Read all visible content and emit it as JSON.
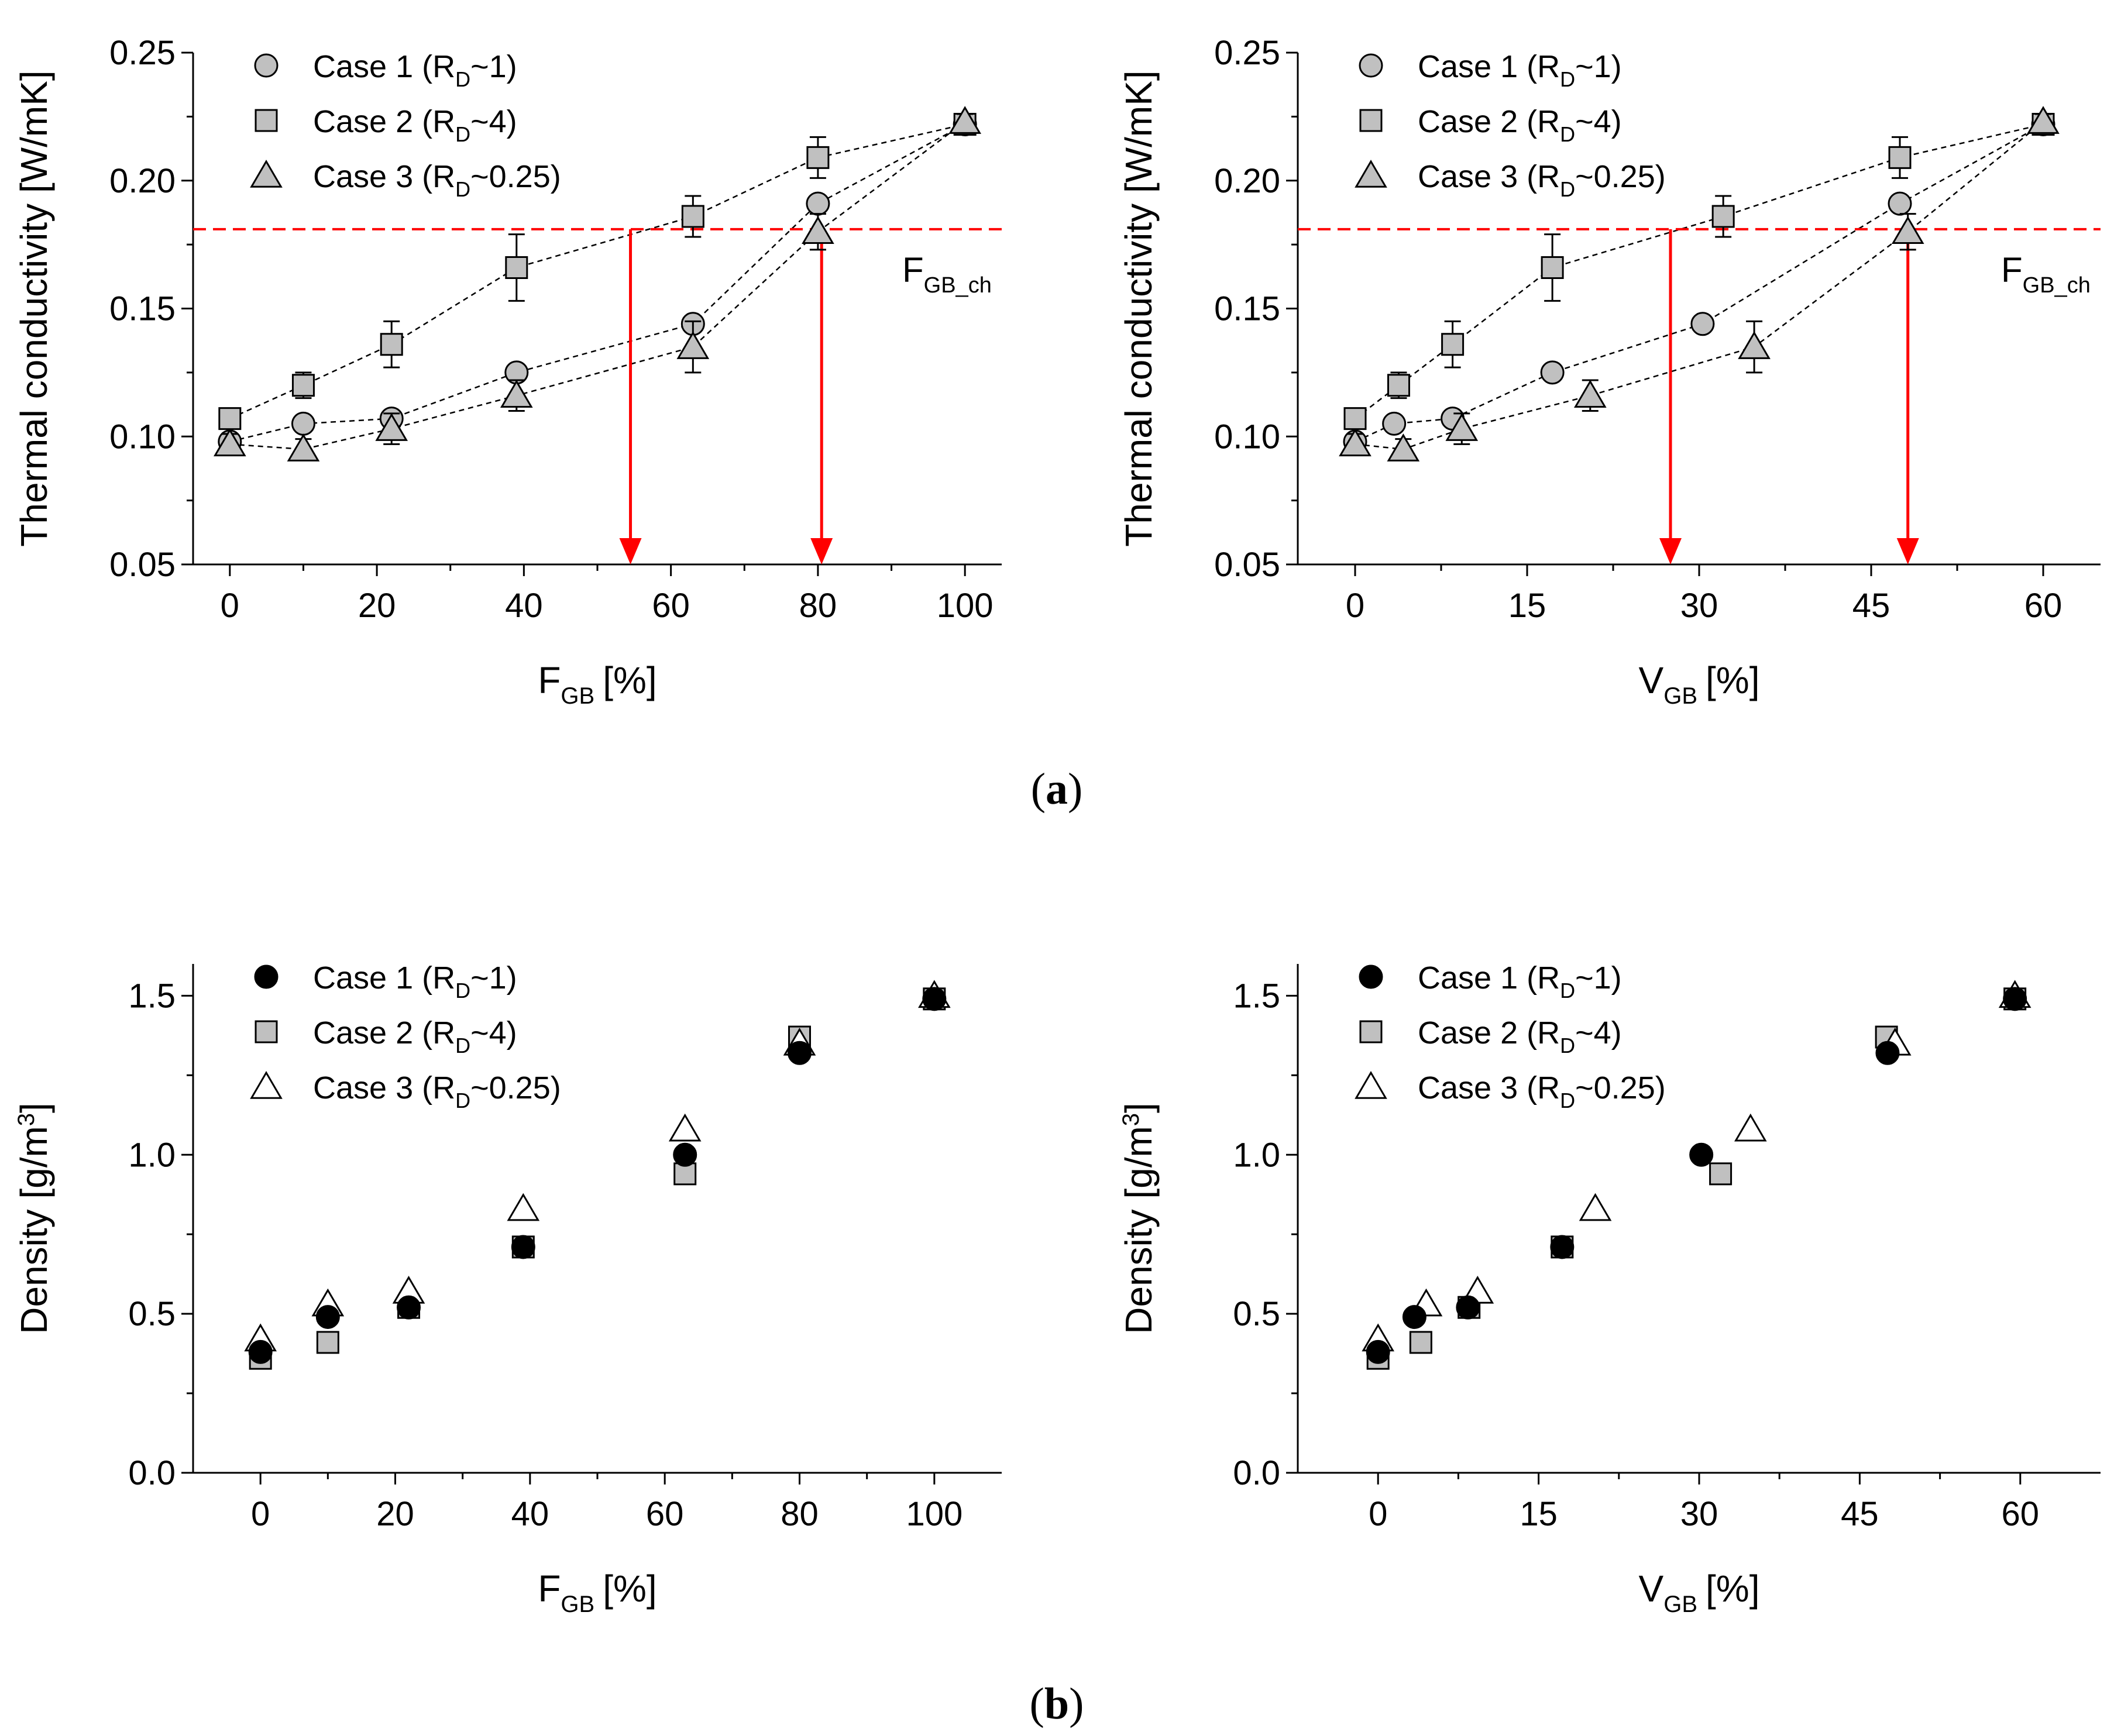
{
  "panels": {
    "a": "a",
    "b": "b"
  },
  "colors": {
    "marker_fill_gray": "#c0c0c0",
    "marker_fill_black": "#000000",
    "marker_fill_white": "#ffffff",
    "threshold_red": "#ff0000",
    "dashed_curve": "#000000"
  },
  "chart_data": [
    {
      "id": "a-left",
      "type": "scatter",
      "xlabel_main": "F",
      "xlabel_sub": "GB",
      "xlabel_unit": "[%]",
      "ylabel": "Thermal conductivity [W/mK]",
      "xlim": [
        -5,
        105
      ],
      "ylim": [
        0.05,
        0.25
      ],
      "xticks": [
        0,
        20,
        40,
        60,
        80,
        100
      ],
      "xtick_labels": [
        "0",
        "20",
        "40",
        "60",
        "80",
        "100"
      ],
      "yticks": [
        0.05,
        0.1,
        0.15,
        0.2,
        0.25
      ],
      "ytick_labels": [
        "0.05",
        "0.10",
        "0.15",
        "0.20",
        "0.25"
      ],
      "threshold": {
        "y": 0.181,
        "label_main": "F",
        "label_sub": "GB_ch",
        "arrows_x": [
          54.5,
          80.5
        ]
      },
      "legend": [
        {
          "marker": "circle",
          "pre": "Case 1 (R",
          "sub": "D",
          "post": "~1)"
        },
        {
          "marker": "square",
          "pre": "Case 2 (R",
          "sub": "D",
          "post": "~4)"
        },
        {
          "marker": "triangle",
          "pre": "Case 3 (R",
          "sub": "D",
          "post": "~0.25)"
        }
      ],
      "series": [
        {
          "name": "Case 1",
          "marker": "circle",
          "fill": "gray",
          "x": [
            0,
            10,
            22,
            39,
            63,
            80,
            100
          ],
          "y": [
            0.098,
            0.105,
            0.107,
            0.125,
            0.144,
            0.191,
            0.222
          ],
          "err": [
            0,
            0,
            0,
            0,
            0,
            0,
            0
          ]
        },
        {
          "name": "Case 2",
          "marker": "square",
          "fill": "gray",
          "x": [
            0,
            10,
            22,
            39,
            63,
            80,
            100
          ],
          "y": [
            0.107,
            0.12,
            0.136,
            0.166,
            0.186,
            0.209,
            0.222
          ],
          "err": [
            0,
            0.005,
            0.009,
            0.013,
            0.008,
            0.008,
            0.003
          ]
        },
        {
          "name": "Case 3",
          "marker": "triangle",
          "fill": "gray",
          "x": [
            0,
            10,
            22,
            39,
            63,
            80,
            100
          ],
          "y": [
            0.097,
            0.095,
            0.103,
            0.116,
            0.135,
            0.18,
            0.223
          ],
          "err": [
            0.004,
            0.004,
            0.006,
            0.006,
            0.01,
            0.007,
            0.003
          ]
        }
      ],
      "dashed_curves": true
    },
    {
      "id": "a-right",
      "type": "scatter",
      "xlabel_main": "V",
      "xlabel_sub": "GB",
      "xlabel_unit": "[%]",
      "ylabel": "Thermal conductivity [W/mK]",
      "xlim": [
        -5,
        65
      ],
      "ylim": [
        0.05,
        0.25
      ],
      "xticks": [
        0,
        15,
        30,
        45,
        60
      ],
      "xtick_labels": [
        "0",
        "15",
        "30",
        "45",
        "60"
      ],
      "yticks": [
        0.05,
        0.1,
        0.15,
        0.2,
        0.25
      ],
      "ytick_labels": [
        "0.05",
        "0.10",
        "0.15",
        "0.20",
        "0.25"
      ],
      "threshold": {
        "y": 0.181,
        "label_main": "F",
        "label_sub": "GB_ch",
        "arrows_x": [
          27.5,
          48.2
        ]
      },
      "legend": [
        {
          "marker": "circle",
          "pre": "Case 1 (R",
          "sub": "D",
          "post": "~1)"
        },
        {
          "marker": "square",
          "pre": "Case 2 (R",
          "sub": "D",
          "post": "~4)"
        },
        {
          "marker": "triangle",
          "pre": "Case 3 (R",
          "sub": "D",
          "post": "~0.25)"
        }
      ],
      "series": [
        {
          "name": "Case 1",
          "marker": "circle",
          "fill": "gray",
          "x": [
            0,
            3.4,
            8.5,
            17.2,
            30.3,
            47.5,
            60
          ],
          "y": [
            0.098,
            0.105,
            0.107,
            0.125,
            0.144,
            0.191,
            0.222
          ],
          "err": [
            0,
            0,
            0,
            0,
            0,
            0,
            0
          ]
        },
        {
          "name": "Case 2",
          "marker": "square",
          "fill": "gray",
          "x": [
            0,
            3.8,
            8.5,
            17.2,
            32.1,
            47.5,
            60
          ],
          "y": [
            0.107,
            0.12,
            0.136,
            0.166,
            0.186,
            0.209,
            0.222
          ],
          "err": [
            0,
            0.005,
            0.009,
            0.013,
            0.008,
            0.008,
            0.003
          ]
        },
        {
          "name": "Case 3",
          "marker": "triangle",
          "fill": "gray",
          "x": [
            0,
            4.2,
            9.3,
            20.5,
            34.8,
            48.2,
            60
          ],
          "y": [
            0.097,
            0.095,
            0.103,
            0.116,
            0.135,
            0.18,
            0.223
          ],
          "err": [
            0.004,
            0.004,
            0.006,
            0.006,
            0.01,
            0.007,
            0.003
          ]
        }
      ],
      "dashed_curves": true
    },
    {
      "id": "b-left",
      "type": "scatter",
      "xlabel_main": "F",
      "xlabel_sub": "GB",
      "xlabel_unit": "[%]",
      "ylabel_pre": "Density [g/m",
      "ylabel_sup": "3",
      "ylabel_post": "]",
      "xlim": [
        -10,
        110
      ],
      "ylim": [
        0.0,
        1.6
      ],
      "xticks": [
        0,
        20,
        40,
        60,
        80,
        100
      ],
      "xtick_labels": [
        "0",
        "20",
        "40",
        "60",
        "80",
        "100"
      ],
      "yticks": [
        0.0,
        0.5,
        1.0,
        1.5
      ],
      "ytick_labels": [
        "0.0",
        "0.5",
        "1.0",
        "1.5"
      ],
      "legend": [
        {
          "marker": "circle",
          "pre": "Case 1 (R",
          "sub": "D",
          "post": "~1)"
        },
        {
          "marker": "square",
          "pre": "Case 2 (R",
          "sub": "D",
          "post": "~4)"
        },
        {
          "marker": "triangle",
          "pre": "Case 3 (R",
          "sub": "D",
          "post": "~0.25)"
        }
      ],
      "series": [
        {
          "name": "Case 2",
          "marker": "square",
          "fill": "gray",
          "x": [
            0,
            10,
            22,
            39,
            63,
            80,
            100
          ],
          "y": [
            0.36,
            0.41,
            0.52,
            0.71,
            0.94,
            1.37,
            1.49
          ]
        },
        {
          "name": "Case 3",
          "marker": "triangle",
          "fill": "white",
          "x": [
            0,
            10,
            22,
            39,
            63,
            80,
            100
          ],
          "y": [
            0.42,
            0.53,
            0.57,
            0.83,
            1.08,
            1.35,
            1.5
          ]
        },
        {
          "name": "Case 1",
          "marker": "circle",
          "fill": "black",
          "x": [
            0,
            10,
            22,
            39,
            63,
            80,
            100
          ],
          "y": [
            0.38,
            0.49,
            0.52,
            0.71,
            1.0,
            1.32,
            1.49
          ]
        }
      ]
    },
    {
      "id": "b-right",
      "type": "scatter",
      "xlabel_main": "V",
      "xlabel_sub": "GB",
      "xlabel_unit": "[%]",
      "ylabel_pre": "Density [g/m",
      "ylabel_sup": "3",
      "ylabel_post": "]",
      "xlim": [
        -7.5,
        67.5
      ],
      "ylim": [
        0.0,
        1.6
      ],
      "xticks": [
        0,
        15,
        30,
        45,
        60
      ],
      "xtick_labels": [
        "0",
        "15",
        "30",
        "45",
        "60"
      ],
      "yticks": [
        0.0,
        0.5,
        1.0,
        1.5
      ],
      "ytick_labels": [
        "0.0",
        "0.5",
        "1.0",
        "1.5"
      ],
      "legend": [
        {
          "marker": "circle",
          "pre": "Case 1 (R",
          "sub": "D",
          "post": "~1)"
        },
        {
          "marker": "square",
          "pre": "Case 2 (R",
          "sub": "D",
          "post": "~4)"
        },
        {
          "marker": "triangle",
          "pre": "Case 3 (R",
          "sub": "D",
          "post": "~0.25)"
        }
      ],
      "series": [
        {
          "name": "Case 2",
          "marker": "square",
          "fill": "gray",
          "x": [
            0,
            4,
            8.5,
            17.2,
            32,
            47.5,
            59.5
          ],
          "y": [
            0.36,
            0.41,
            0.52,
            0.71,
            0.94,
            1.37,
            1.49
          ]
        },
        {
          "name": "Case 3",
          "marker": "triangle",
          "fill": "white",
          "x": [
            0,
            4.5,
            9.3,
            20.3,
            34.8,
            48.3,
            59.5
          ],
          "y": [
            0.42,
            0.53,
            0.57,
            0.83,
            1.08,
            1.35,
            1.5
          ]
        },
        {
          "name": "Case 1",
          "marker": "circle",
          "fill": "black",
          "x": [
            0,
            3.4,
            8.4,
            17.2,
            30.2,
            47.6,
            59.5
          ],
          "y": [
            0.38,
            0.49,
            0.52,
            0.71,
            1.0,
            1.32,
            1.49
          ]
        }
      ]
    }
  ]
}
